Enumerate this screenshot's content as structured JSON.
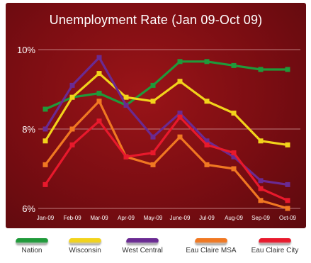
{
  "chart_data": {
    "type": "line",
    "title": "Unemployment Rate (Jan 09-Oct 09)",
    "categories": [
      "Jan-09",
      "Feb-09",
      "Mar-09",
      "Apr-09",
      "May-09",
      "June-09",
      "Jul-09",
      "Aug-09",
      "Sep-09",
      "Oct-09"
    ],
    "y_ticks": [
      "10%",
      "8%",
      "6%"
    ],
    "ylim": [
      6,
      10
    ],
    "grid": "horizontal",
    "legend_position": "bottom",
    "series": [
      {
        "name": "Nation",
        "color": "#1f9a3a",
        "values": [
          8.5,
          8.8,
          8.9,
          8.6,
          9.1,
          9.7,
          9.7,
          9.6,
          9.5,
          9.5
        ]
      },
      {
        "name": "Wisconsin",
        "color": "#f2d31b",
        "values": [
          7.7,
          8.8,
          9.4,
          8.8,
          8.7,
          9.2,
          8.7,
          8.4,
          7.7,
          7.6
        ]
      },
      {
        "name": "West Central",
        "color": "#6a2a92",
        "values": [
          8.0,
          9.1,
          9.8,
          8.6,
          7.8,
          8.4,
          7.7,
          7.3,
          6.7,
          6.6
        ]
      },
      {
        "name": "Eau Claire MSA",
        "color": "#f07822",
        "values": [
          7.1,
          8.0,
          8.7,
          7.3,
          7.1,
          7.8,
          7.1,
          7.0,
          6.2,
          6.0
        ]
      },
      {
        "name": "Eau Claire City",
        "color": "#e8192c",
        "values": [
          6.6,
          7.6,
          8.2,
          7.3,
          7.4,
          8.3,
          7.6,
          7.4,
          6.5,
          6.2
        ]
      }
    ]
  }
}
